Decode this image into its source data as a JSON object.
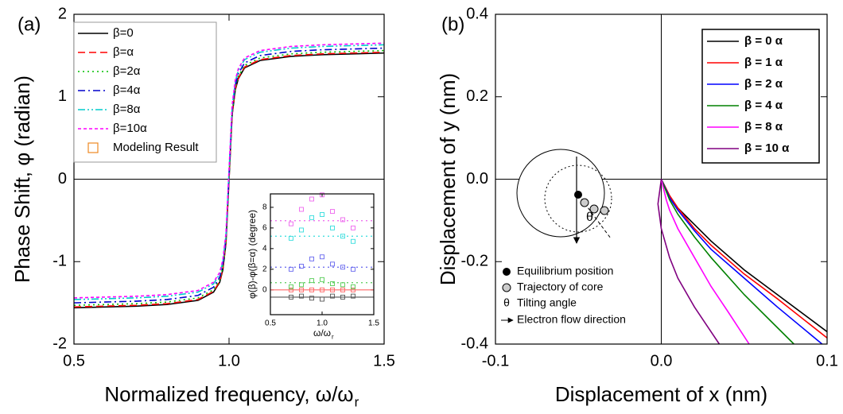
{
  "chart_data": [
    {
      "type": "line",
      "panel_label": "(a)",
      "ylabel": "Phase Shift, φ (radian)",
      "xlabel": {
        "text": "Normalized frequency, ω/ω",
        "sub": "r"
      },
      "xlim": [
        0.5,
        1.5
      ],
      "xticks": [
        0.5,
        {
          "value": 1,
          "label": "1.0"
        },
        1.5
      ],
      "ylim": [
        -2,
        2
      ],
      "yticks": [
        -2,
        -1,
        0,
        1,
        2
      ],
      "zero_line": true,
      "x": [
        0.5,
        0.6,
        0.7,
        0.8,
        0.9,
        0.95,
        0.97,
        0.98,
        0.99,
        1.0,
        1.01,
        1.02,
        1.03,
        1.05,
        1.1,
        1.2,
        1.3,
        1.4,
        1.5
      ],
      "series": [
        {
          "name": "β=0",
          "color": "#000000",
          "dash": "solid",
          "values": [
            -1.56,
            -1.55,
            -1.54,
            -1.52,
            -1.47,
            -1.37,
            -1.25,
            -1.1,
            -0.78,
            0,
            0.78,
            1.08,
            1.22,
            1.35,
            1.44,
            1.49,
            1.51,
            1.52,
            1.53
          ]
        },
        {
          "name": "β=α",
          "color": "#ff0000",
          "dash": "dashed",
          "values": [
            -1.55,
            -1.54,
            -1.53,
            -1.51,
            -1.46,
            -1.36,
            -1.24,
            -1.09,
            -0.77,
            0.01,
            0.79,
            1.09,
            1.23,
            1.36,
            1.45,
            1.5,
            1.52,
            1.53,
            1.54
          ]
        },
        {
          "name": "β=2α",
          "color": "#00c000",
          "dash": "dotted",
          "values": [
            -1.53,
            -1.52,
            -1.51,
            -1.49,
            -1.44,
            -1.34,
            -1.22,
            -1.07,
            -0.75,
            0.03,
            0.81,
            1.11,
            1.25,
            1.38,
            1.47,
            1.52,
            1.54,
            1.55,
            1.56
          ]
        },
        {
          "name": "β=4α",
          "color": "#0000cc",
          "dash": "dashdot",
          "values": [
            -1.5,
            -1.49,
            -1.48,
            -1.46,
            -1.41,
            -1.31,
            -1.19,
            -1.04,
            -0.72,
            0.06,
            0.84,
            1.14,
            1.28,
            1.41,
            1.5,
            1.55,
            1.57,
            1.58,
            1.59
          ]
        },
        {
          "name": "β=8α",
          "color": "#00cccc",
          "dash": "dashdotdot",
          "values": [
            -1.46,
            -1.45,
            -1.44,
            -1.42,
            -1.37,
            -1.27,
            -1.15,
            -1.0,
            -0.68,
            0.1,
            0.88,
            1.18,
            1.32,
            1.45,
            1.54,
            1.59,
            1.61,
            1.62,
            1.63
          ]
        },
        {
          "name": "β=10α",
          "color": "#ff00ff",
          "dash": "shortdash",
          "values": [
            -1.44,
            -1.43,
            -1.42,
            -1.4,
            -1.35,
            -1.25,
            -1.13,
            -0.98,
            -0.66,
            0.12,
            0.9,
            1.2,
            1.34,
            1.47,
            1.56,
            1.61,
            1.63,
            1.64,
            1.65
          ]
        }
      ],
      "legend_marker": {
        "name": "Modeling Result",
        "color": "#ee8822"
      }
    },
    {
      "type": "scatter",
      "inset": true,
      "ylabel": "φ(β)-φ(β=α) (degree)",
      "xlabel": {
        "text": "ω/ω",
        "sub": "r"
      },
      "xlim": [
        0.5,
        1.5
      ],
      "xticks": [
        0.5,
        {
          "value": 1,
          "label": "1.0"
        },
        1.5
      ],
      "ylim": [
        -2.4,
        9.3
      ],
      "yticks": [
        0,
        2,
        4,
        6,
        8
      ],
      "x": [
        0.7,
        0.8,
        0.9,
        1.0,
        1.1,
        1.2,
        1.3
      ],
      "series": [
        {
          "color": "#555555",
          "dash": "solid",
          "level": -0.7,
          "values": [
            -0.7,
            -0.6,
            -0.8,
            -0.9,
            -0.6,
            -0.7,
            -0.6
          ]
        },
        {
          "color": "#ff6666",
          "dash": "solid",
          "level": 0,
          "values": [
            0,
            0,
            0,
            0,
            0,
            0,
            0
          ]
        },
        {
          "color": "#55cc55",
          "dash": "dotted",
          "level": 0.7,
          "values": [
            0.3,
            0.5,
            0.9,
            1.0,
            0.6,
            0.5,
            0.3
          ]
        },
        {
          "color": "#6666ee",
          "dash": "dotted",
          "level": 2.2,
          "values": [
            2.0,
            2.3,
            3.0,
            3.2,
            2.5,
            2.2,
            2.0
          ]
        },
        {
          "color": "#33dddd",
          "dash": "dotted",
          "level": 5.2,
          "values": [
            5.0,
            5.8,
            7.0,
            7.3,
            6.0,
            5.2,
            4.7
          ]
        },
        {
          "color": "#ee66ee",
          "dash": "dotted",
          "level": 6.7,
          "values": [
            6.4,
            7.8,
            8.8,
            9.2,
            7.6,
            6.8,
            6.0
          ]
        }
      ]
    },
    {
      "type": "line",
      "panel_label": "(b)",
      "ylabel": "Displacement of y (nm)",
      "xlabel": {
        "text": "Displacement of x (nm)"
      },
      "xlim": [
        -0.1,
        0.1
      ],
      "xticks": [
        -0.1,
        {
          "value": 0,
          "label": "0.0"
        },
        0.1
      ],
      "ylim": [
        -0.4,
        0.4
      ],
      "yticks": [
        -0.4,
        -0.2,
        {
          "value": 0,
          "label": "0.0"
        },
        0.2,
        0.4
      ],
      "zero_line": true,
      "series": [
        {
          "name": "β = 0 α",
          "color": "#000000",
          "dash": "solid",
          "x": [
            0,
            0.005,
            0.01,
            0.02,
            0.03,
            0.05,
            0.07,
            0.1
          ],
          "values": [
            0,
            -0.04,
            -0.07,
            -0.11,
            -0.15,
            -0.22,
            -0.28,
            -0.37
          ]
        },
        {
          "name": "β = 1 α",
          "color": "#ff0000",
          "dash": "solid",
          "x": [
            0,
            0.005,
            0.01,
            0.02,
            0.03,
            0.05,
            0.07,
            0.1
          ],
          "values": [
            0,
            -0.04,
            -0.07,
            -0.12,
            -0.16,
            -0.23,
            -0.29,
            -0.385
          ]
        },
        {
          "name": "β = 2 α",
          "color": "#0000ff",
          "dash": "solid",
          "x": [
            0,
            0.005,
            0.01,
            0.02,
            0.03,
            0.05,
            0.07,
            0.097
          ],
          "values": [
            0,
            -0.045,
            -0.075,
            -0.125,
            -0.17,
            -0.24,
            -0.31,
            -0.4
          ]
        },
        {
          "name": "β = 4 α",
          "color": "#008000",
          "dash": "solid",
          "x": [
            0,
            0.005,
            0.01,
            0.02,
            0.03,
            0.05,
            0.07,
            0.08
          ],
          "values": [
            0,
            -0.05,
            -0.085,
            -0.14,
            -0.19,
            -0.28,
            -0.36,
            -0.4
          ]
        },
        {
          "name": "β = 8 α",
          "color": "#ff00ff",
          "dash": "solid",
          "x": [
            0,
            0.003,
            0.005,
            0.01,
            0.02,
            0.03,
            0.04,
            0.053
          ],
          "values": [
            0,
            -0.05,
            -0.075,
            -0.12,
            -0.19,
            -0.26,
            -0.32,
            -0.4
          ]
        },
        {
          "name": "β = 10 α",
          "color": "#800080",
          "dash": "solid",
          "x": [
            0,
            -0.001,
            -0.002,
            0.0,
            0.005,
            0.01,
            0.02,
            0.035
          ],
          "values": [
            0,
            -0.03,
            -0.06,
            -0.12,
            -0.19,
            -0.24,
            -0.31,
            -0.4
          ]
        }
      ],
      "annotations": {
        "theta": "θ",
        "legend": [
          "Equilibrium position",
          "Trajectory of core",
          "Tilting angle",
          "Electron flow direction"
        ]
      }
    }
  ]
}
